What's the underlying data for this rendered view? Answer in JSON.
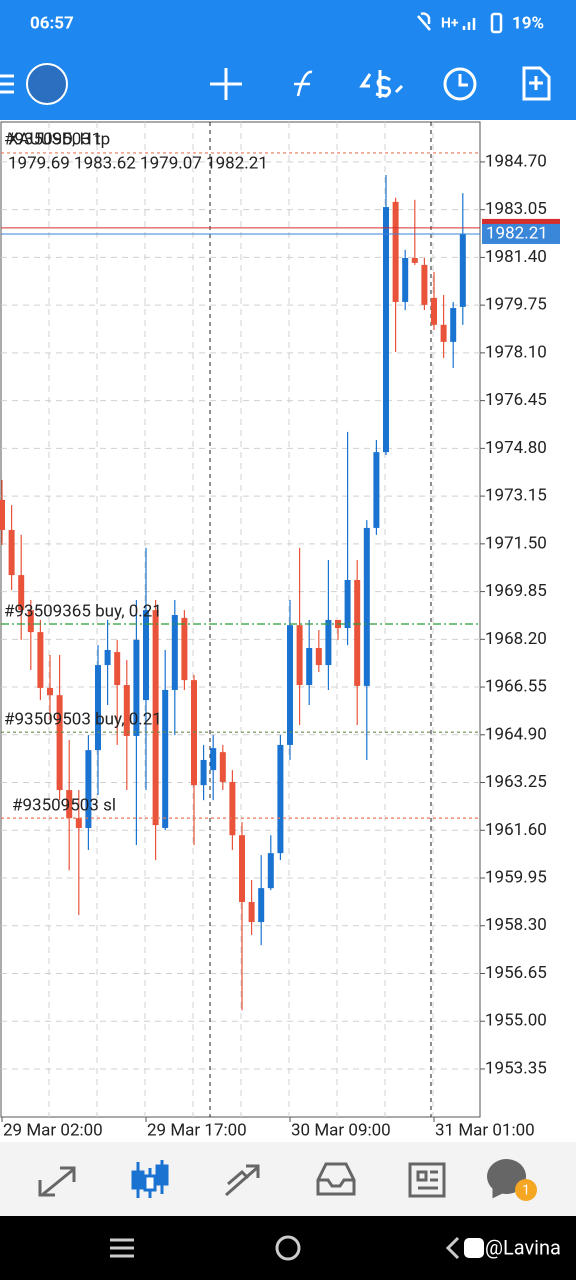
{
  "status_bar": {
    "time": "06:57",
    "network": "H+",
    "battery": "19%"
  },
  "chart_data": {
    "type": "candlestick",
    "title": "XAUUSD, H1",
    "ohlc_label": "1979.69 1983.62 1979.07 1982.21",
    "categories": [
      "29 Mar 02:00",
      null,
      null,
      null,
      null,
      null,
      null,
      null,
      null,
      null,
      null,
      null,
      null,
      null,
      null,
      "29 Mar 17:00",
      null,
      null,
      null,
      null,
      null,
      null,
      null,
      null,
      null,
      null,
      null,
      null,
      null,
      null,
      "30 Mar 09:00",
      null,
      null,
      null,
      null,
      null,
      null,
      null,
      null,
      null,
      null,
      null,
      null,
      null,
      null,
      "31 Mar 01:00",
      null,
      null,
      null
    ],
    "open": [
      1973.02,
      1971.98,
      1970.42,
      1969.21,
      1968.45,
      1966.52,
      1966.27,
      1962.99,
      1962.02,
      1961.68,
      1964.37,
      1967.31,
      1967.76,
      1966.62,
      1964.86,
      1966.1,
      1969.21,
      1961.68,
      1966.45,
      1968.94,
      1966.79,
      1963.16,
      1963.68,
      1964.3,
      1963.27,
      1961.43,
      1959.12,
      1958.43,
      1959.6,
      1960.81,
      1964.55,
      1968.69,
      1966.62,
      1967.9,
      1967.31,
      1968.87,
      1968.59,
      1970.25,
      1966.59,
      1972.05,
      1974.67,
      1983.32,
      1979.86,
      1981.38,
      1981.14,
      1980.0,
      1979.07,
      1978.48,
      1979.69
    ],
    "high": [
      1973.71,
      1972.84,
      1971.81,
      1969.56,
      1968.87,
      1967.66,
      1967.66,
      1964.72,
      1962.99,
      1964.89,
      1968.0,
      1968.87,
      1968.18,
      1967.48,
      1969.56,
      1971.36,
      1969.56,
      1967.83,
      1969.56,
      1969.21,
      1966.97,
      1964.55,
      1964.89,
      1964.55,
      1963.68,
      1961.88,
      1959.88,
      1960.74,
      1961.43,
      1964.89,
      1969.56,
      1971.36,
      1968.87,
      1968.52,
      1970.94,
      1968.87,
      1975.37,
      1970.94,
      1972.32,
      1975.09,
      1984.25,
      1983.46,
      1981.66,
      1983.39,
      1981.38,
      1980.9,
      1980.1,
      1979.86,
      1983.62
    ],
    "low": [
      1971.46,
      1969.9,
      1968.18,
      1967.14,
      1966.1,
      1965.41,
      1962.64,
      1960.22,
      1958.67,
      1960.92,
      1962.82,
      1965.93,
      1964.55,
      1962.99,
      1961.09,
      1962.99,
      1960.57,
      1961.61,
      1964.89,
      1966.45,
      1961.09,
      1962.64,
      1962.64,
      1962.99,
      1960.92,
      1955.38,
      1957.98,
      1957.63,
      1959.53,
      1960.57,
      1964.03,
      1965.24,
      1965.93,
      1967.07,
      1966.45,
      1968.18,
      1968.0,
      1965.24,
      1964.03,
      1971.81,
      1974.57,
      1978.13,
      1979.58,
      1981.14,
      1979.58,
      1978.89,
      1977.92,
      1977.58,
      1979.07
    ],
    "close": [
      1971.98,
      1970.42,
      1969.21,
      1968.45,
      1966.52,
      1966.27,
      1962.99,
      1962.02,
      1961.68,
      1964.37,
      1967.31,
      1967.83,
      1966.62,
      1964.86,
      1968.18,
      1969.21,
      1961.78,
      1966.45,
      1969.04,
      1966.79,
      1963.16,
      1964.03,
      1964.44,
      1963.27,
      1961.43,
      1959.12,
      1958.43,
      1959.6,
      1960.81,
      1964.55,
      1968.69,
      1966.62,
      1967.9,
      1967.31,
      1968.87,
      1968.59,
      1970.25,
      1966.59,
      1972.05,
      1974.67,
      1983.14,
      1979.86,
      1981.38,
      1981.21,
      1979.76,
      1979.07,
      1978.48,
      1979.65,
      1982.21
    ],
    "up_color": "#1a73d1",
    "down_color": "#e8533a",
    "ylim": [
      1951.69,
      1986.08
    ],
    "yticks": [
      {
        "value": 1984.7,
        "label": "1984.70"
      },
      1983.05,
      {
        "value": 1981.4,
        "label": "1981.40"
      },
      1979.75,
      {
        "value": 1978.1,
        "label": "1978.10"
      },
      1976.45,
      {
        "value": 1974.8,
        "label": "1974.80"
      },
      1973.15,
      {
        "value": 1971.5,
        "label": "1971.50"
      },
      1969.85,
      {
        "value": 1968.2,
        "label": "1968.20"
      },
      1966.55,
      {
        "value": 1964.9,
        "label": "1964.90"
      },
      1963.25,
      {
        "value": 1961.6,
        "label": "1961.60"
      },
      1959.95,
      {
        "value": 1958.3,
        "label": "1958.30"
      },
      1956.65,
      {
        "value": 1955.0,
        "label": "1955.00"
      },
      1953.35
    ],
    "grid": true,
    "bid": 1982.21,
    "bid_color": "#3a86d9",
    "ask": 1982.42,
    "ask_color": "#d32f2f",
    "levels": [
      {
        "label": "#93509503 tp",
        "value": 1985.01,
        "color": "#e57a5a"
      },
      {
        "label": "#93509365 buy, 0.21",
        "value": 1968.73,
        "color": "#2e9a3a"
      },
      {
        "label": "#93509503 buy, 0.21",
        "value": 1964.99,
        "color": "#6b8a4a"
      },
      {
        "label": "#93509503 sl",
        "value": 1962.02,
        "color": "#e57a5a"
      }
    ]
  },
  "bottom_nav": {
    "badge": 1
  },
  "watermark": "@Lavina"
}
